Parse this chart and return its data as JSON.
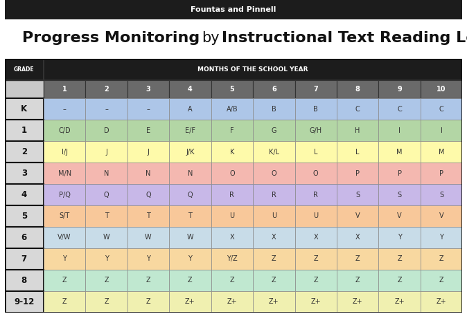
{
  "top_banner_text": "Fountas and Pinnell",
  "title_part1": "Progress Monitoring",
  "title_part2": " by ",
  "title_part3": "Instructional Text Reading Level",
  "header_grade": "GRADE",
  "header_months": "MONTHS OF THE SCHOOL YEAR",
  "month_numbers": [
    "1",
    "2",
    "3",
    "4",
    "5",
    "6",
    "7",
    "8",
    "9",
    "10"
  ],
  "grades": [
    "K",
    "1",
    "2",
    "3",
    "4",
    "5",
    "6",
    "7",
    "8",
    "9-12"
  ],
  "table_data": [
    [
      "–",
      "–",
      "–",
      "A",
      "A/B",
      "B",
      "B",
      "C",
      "C",
      "C"
    ],
    [
      "C/D",
      "D",
      "E",
      "E/F",
      "F",
      "G",
      "G/H",
      "H",
      "I",
      "I"
    ],
    [
      "I/J",
      "J",
      "J",
      "J/K",
      "K",
      "K/L",
      "L",
      "L",
      "M",
      "M"
    ],
    [
      "M/N",
      "N",
      "N",
      "N",
      "O",
      "O",
      "O",
      "P",
      "P",
      "P"
    ],
    [
      "P/Q",
      "Q",
      "Q",
      "Q",
      "R",
      "R",
      "R",
      "S",
      "S",
      "S"
    ],
    [
      "S/T",
      "T",
      "T",
      "T",
      "U",
      "U",
      "U",
      "V",
      "V",
      "V"
    ],
    [
      "V/W",
      "W",
      "W",
      "W",
      "X",
      "X",
      "X",
      "X",
      "Y",
      "Y"
    ],
    [
      "Y",
      "Y",
      "Y",
      "Y",
      "Y/Z",
      "Z",
      "Z",
      "Z",
      "Z",
      "Z"
    ],
    [
      "Z",
      "Z",
      "Z",
      "Z",
      "Z",
      "Z",
      "Z",
      "Z",
      "Z",
      "Z"
    ],
    [
      "Z",
      "Z",
      "Z",
      "Z+",
      "Z+",
      "Z+",
      "Z+",
      "Z+",
      "Z+",
      "Z+"
    ]
  ],
  "row_colors": [
    "#adc6e8",
    "#b3d6a5",
    "#fefaaa",
    "#f4b8b0",
    "#c8b8e8",
    "#f8c89a",
    "#c8dce8",
    "#f8d8a0",
    "#c0e8d0",
    "#f0f0b0"
  ],
  "header_bg": "#1c1c1c",
  "header_text_color": "#ffffff",
  "month_header_bg": "#6a6a6a",
  "month_header_text": "#ffffff",
  "grade_col_bg_top": "#e8e8e8",
  "grade_col_bg_bot": "#c0c0c0",
  "grade_col_text": "#111111",
  "top_banner_bg": "#1c1c1c",
  "top_banner_text_color": "#ffffff",
  "fig_bg": "#ffffff",
  "outer_border": "#111111"
}
